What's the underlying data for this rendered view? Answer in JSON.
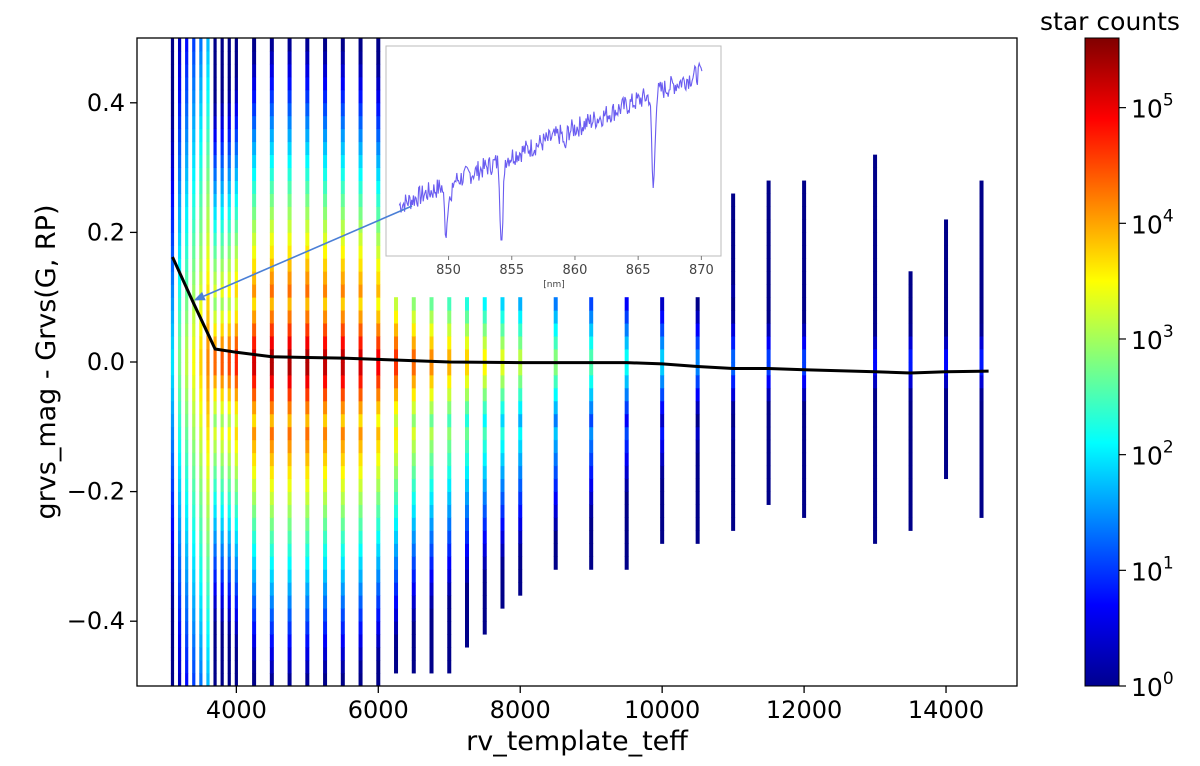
{
  "chart_data": {
    "type": "heatmap",
    "title": "",
    "xlabel": "rv_template_teff",
    "ylabel": "grvs_mag - Grvs(G, RP)",
    "xlim": [
      2600,
      15000
    ],
    "ylim": [
      -0.5,
      0.5
    ],
    "x_ticks": [
      4000,
      6000,
      8000,
      10000,
      12000,
      14000
    ],
    "x_tick_labels": [
      "4000",
      "6000",
      "8000",
      "10000",
      "12000",
      "14000"
    ],
    "y_ticks": [
      -0.4,
      -0.2,
      0.0,
      0.2,
      0.4
    ],
    "y_tick_labels": [
      "−0.4",
      "−0.2",
      "0.0",
      "0.2",
      "0.4"
    ],
    "colorbar": {
      "label": "star counts",
      "scale": "log",
      "colormap": "jet",
      "range": [
        1,
        400000
      ],
      "ticks": [
        1,
        10,
        100,
        1000,
        10000,
        100000
      ],
      "tick_bases": [
        "10",
        "10",
        "10",
        "10",
        "10",
        "10"
      ],
      "tick_exponents": [
        "0",
        "1",
        "2",
        "3",
        "4",
        "5"
      ]
    },
    "heatmap_columns": [
      {
        "x": 3100,
        "peak": 2.0,
        "ymin": -0.5,
        "ymax": 0.5
      },
      {
        "x": 3200,
        "peak": 2.8,
        "ymin": -0.5,
        "ymax": 0.5
      },
      {
        "x": 3300,
        "peak": 3.2,
        "ymin": -0.5,
        "ymax": 0.5
      },
      {
        "x": 3400,
        "peak": 3.5,
        "ymin": -0.5,
        "ymax": 0.5
      },
      {
        "x": 3500,
        "peak": 3.8,
        "ymin": -0.5,
        "ymax": 0.5
      },
      {
        "x": 3600,
        "peak": 4.2,
        "ymin": -0.5,
        "ymax": 0.5
      },
      {
        "x": 3700,
        "peak": 4.5,
        "ymin": -0.5,
        "ymax": 0.5
      },
      {
        "x": 3800,
        "peak": 4.6,
        "ymin": -0.5,
        "ymax": 0.5
      },
      {
        "x": 3900,
        "peak": 4.7,
        "ymin": -0.5,
        "ymax": 0.5
      },
      {
        "x": 4000,
        "peak": 4.9,
        "ymin": -0.5,
        "ymax": 0.5
      },
      {
        "x": 4250,
        "peak": 5.3,
        "ymin": -0.5,
        "ymax": 0.5
      },
      {
        "x": 4500,
        "peak": 5.5,
        "ymin": -0.5,
        "ymax": 0.5
      },
      {
        "x": 4750,
        "peak": 5.5,
        "ymin": -0.5,
        "ymax": 0.5
      },
      {
        "x": 5000,
        "peak": 5.5,
        "ymin": -0.5,
        "ymax": 0.5
      },
      {
        "x": 5250,
        "peak": 5.4,
        "ymin": -0.5,
        "ymax": 0.5
      },
      {
        "x": 5500,
        "peak": 5.4,
        "ymin": -0.5,
        "ymax": 0.5
      },
      {
        "x": 5750,
        "peak": 5.3,
        "ymin": -0.5,
        "ymax": 0.5
      },
      {
        "x": 6000,
        "peak": 5.1,
        "ymin": -0.5,
        "ymax": 0.5
      },
      {
        "x": 6250,
        "peak": 4.8,
        "ymin": -0.47,
        "ymax": 0.11
      },
      {
        "x": 6500,
        "peak": 4.5,
        "ymin": -0.47,
        "ymax": 0.11
      },
      {
        "x": 6750,
        "peak": 4.3,
        "ymin": -0.47,
        "ymax": 0.11
      },
      {
        "x": 7000,
        "peak": 4.1,
        "ymin": -0.47,
        "ymax": 0.11
      },
      {
        "x": 7250,
        "peak": 3.9,
        "ymin": -0.43,
        "ymax": 0.11
      },
      {
        "x": 7500,
        "peak": 3.7,
        "ymin": -0.41,
        "ymax": 0.11
      },
      {
        "x": 7750,
        "peak": 3.5,
        "ymin": -0.38,
        "ymax": 0.11
      },
      {
        "x": 8000,
        "peak": 3.3,
        "ymin": -0.35,
        "ymax": 0.11
      },
      {
        "x": 8500,
        "peak": 3.0,
        "ymin": -0.31,
        "ymax": 0.11
      },
      {
        "x": 9000,
        "peak": 2.7,
        "ymin": -0.31,
        "ymax": 0.11
      },
      {
        "x": 9500,
        "peak": 2.3,
        "ymin": -0.31,
        "ymax": 0.11
      },
      {
        "x": 10000,
        "peak": 2.0,
        "ymin": -0.28,
        "ymax": 0.11
      },
      {
        "x": 10500,
        "peak": 1.6,
        "ymin": -0.28,
        "ymax": 0.11
      },
      {
        "x": 11000,
        "peak": 1.4,
        "ymin": -0.25,
        "ymax": 0.27
      },
      {
        "x": 11500,
        "peak": 1.2,
        "ymin": -0.21,
        "ymax": 0.28
      },
      {
        "x": 12000,
        "peak": 1.2,
        "ymin": -0.23,
        "ymax": 0.28
      },
      {
        "x": 13000,
        "peak": 0.9,
        "ymin": -0.27,
        "ymax": 0.32
      },
      {
        "x": 13500,
        "peak": 1.0,
        "ymin": -0.25,
        "ymax": 0.14
      },
      {
        "x": 14000,
        "peak": 0.9,
        "ymin": -0.17,
        "ymax": 0.23
      },
      {
        "x": 14500,
        "peak": 1.0,
        "ymin": -0.23,
        "ymax": 0.28
      }
    ],
    "median_line": {
      "x": [
        3100,
        3400,
        3700,
        4000,
        4500,
        5000,
        5500,
        6000,
        7000,
        8000,
        9000,
        9500,
        10000,
        10500,
        11000,
        11500,
        12000,
        13000,
        13500,
        14000,
        14600
      ],
      "y": [
        0.162,
        0.09,
        0.02,
        0.015,
        0.008,
        0.007,
        0.006,
        0.004,
        0.0,
        -0.001,
        -0.001,
        -0.001,
        -0.003,
        -0.007,
        -0.01,
        -0.01,
        -0.012,
        -0.015,
        -0.017,
        -0.015,
        -0.014
      ]
    },
    "inset": {
      "x_ticks": [
        850,
        855,
        860,
        865,
        870
      ],
      "x_tick_labels": [
        "850",
        "855",
        "860",
        "865",
        "870"
      ],
      "xlabel": "[nm]",
      "xlim": [
        846,
        871
      ],
      "arrow_target": {
        "x": 3400,
        "y": 0.095
      }
    }
  }
}
